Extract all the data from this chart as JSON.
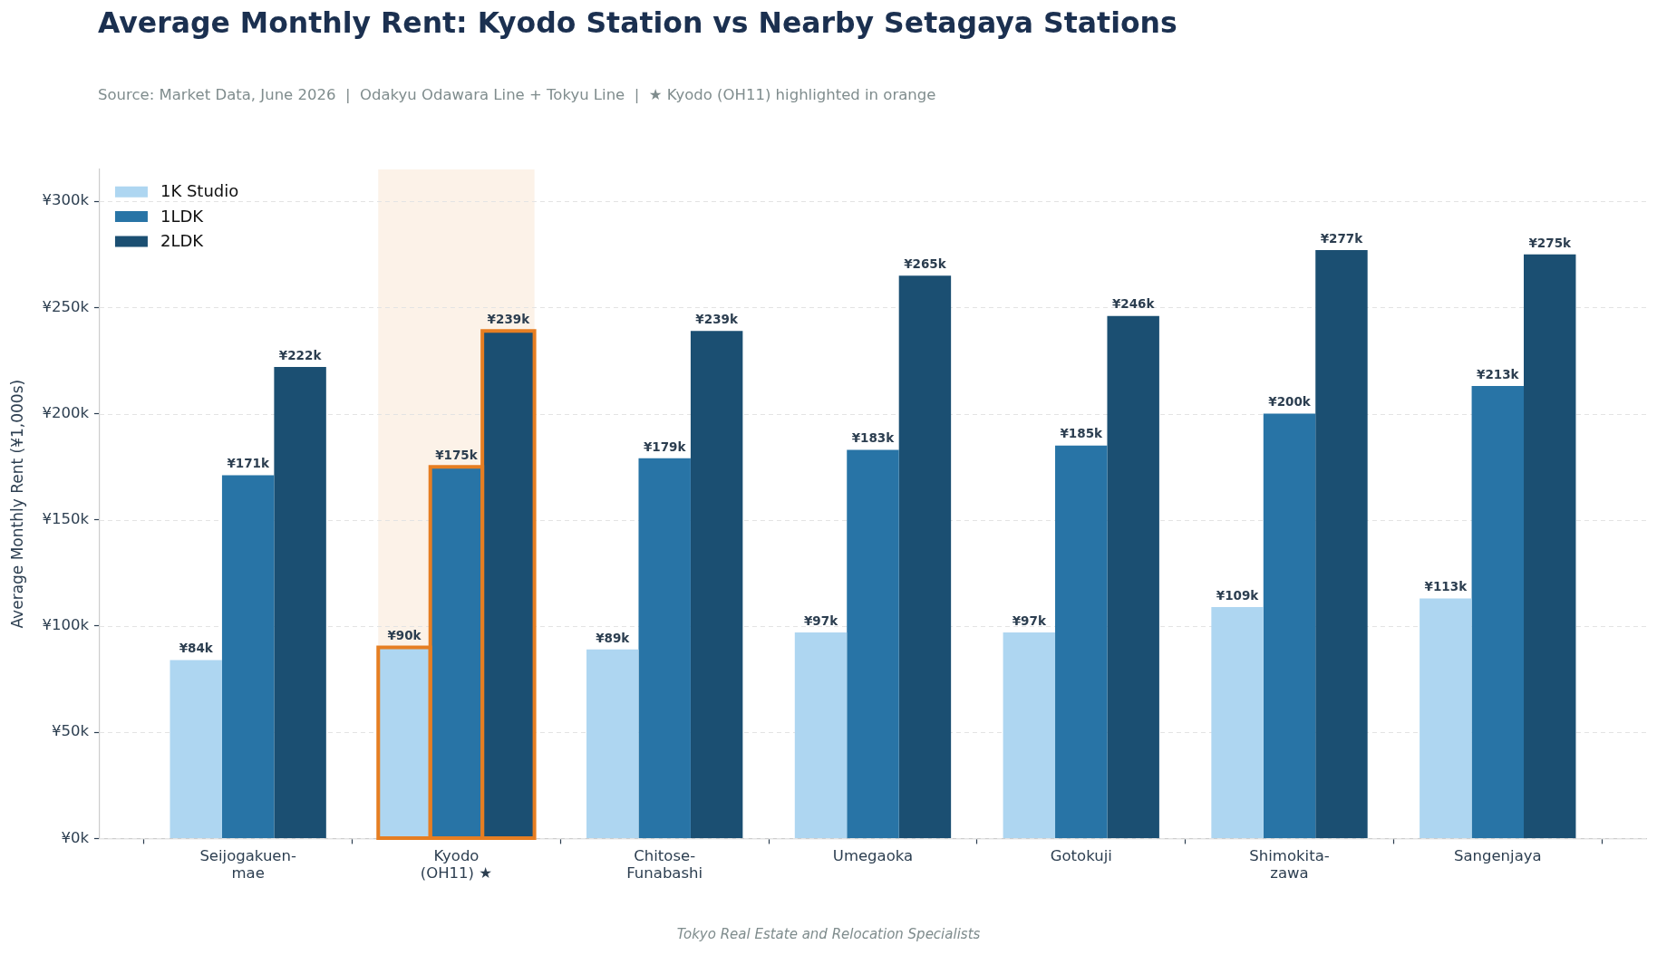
{
  "chart_data": {
    "type": "bar",
    "title": "Average Monthly Rent: Kyodo Station vs Nearby Setagaya Stations",
    "subtitle": "Source: Market Data, June 2026  |  Odakyu Odawara Line + Tokyu Line  |  ★ Kyodo (OH11) highlighted in orange",
    "ylabel": "Average Monthly Rent (¥1,000s)",
    "categories": [
      "Seijogakuen-\nmae",
      "Kyodo\n(OH11) ★",
      "Chitose-\nFunabashi",
      "Umegaoka",
      "Gotokuji",
      "Shimokita-\nzawa",
      "Sangenjaya"
    ],
    "series": [
      {
        "name": "1K Studio",
        "color": "#aed6f1",
        "values": [
          84,
          90,
          89,
          97,
          97,
          109,
          113
        ],
        "value_labels": [
          "¥84k",
          "¥90k",
          "¥89k",
          "¥97k",
          "¥97k",
          "¥109k",
          "¥113k"
        ]
      },
      {
        "name": "1LDK",
        "color": "#2874a6",
        "values": [
          171,
          175,
          179,
          183,
          185,
          200,
          213
        ],
        "value_labels": [
          "¥171k",
          "¥175k",
          "¥179k",
          "¥183k",
          "¥185k",
          "¥200k",
          "¥213k"
        ]
      },
      {
        "name": "2LDK",
        "color": "#1b4f72",
        "values": [
          222,
          239,
          239,
          265,
          246,
          277,
          275
        ],
        "value_labels": [
          "¥222k",
          "¥239k",
          "¥239k",
          "¥265k",
          "¥246k",
          "¥277k",
          "¥275k"
        ]
      }
    ],
    "ylim": [
      0,
      315
    ],
    "yticks": [
      {
        "value": 0,
        "label": "¥0k"
      },
      {
        "value": 50,
        "label": "¥50k"
      },
      {
        "value": 100,
        "label": "¥100k"
      },
      {
        "value": 150,
        "label": "¥150k"
      },
      {
        "value": 200,
        "label": "¥200k"
      },
      {
        "value": 250,
        "label": "¥250k"
      },
      {
        "value": 300,
        "label": "¥300k"
      }
    ],
    "grid": "y",
    "legend": "top left",
    "bands": [
      {
        "axis": "x",
        "from": "Kyodo\n(OH11) ★",
        "to": "Kyodo\n(OH11) ★",
        "color": "#e67e22"
      }
    ],
    "annotations": [
      "Tokyo Real Estate and Relocation Specialists"
    ]
  }
}
